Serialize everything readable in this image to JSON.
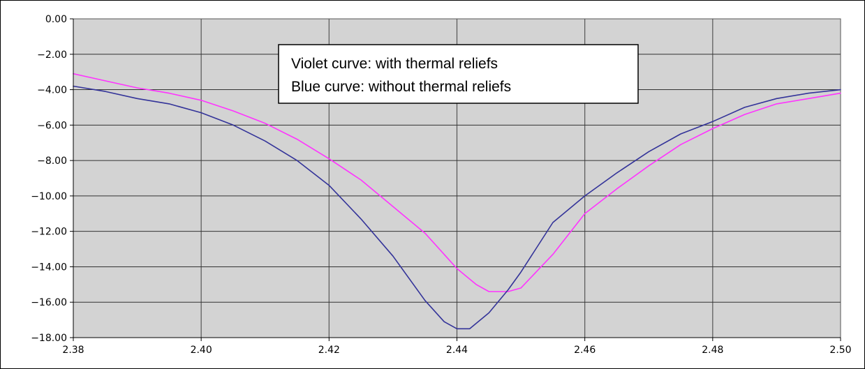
{
  "chart_data": {
    "type": "line",
    "title": "",
    "xlabel": "",
    "ylabel": "",
    "xlim": [
      2.38,
      2.5
    ],
    "ylim": [
      -18,
      0
    ],
    "x_ticks": [
      "2.38",
      "2.40",
      "2.42",
      "2.44",
      "2.46",
      "2.48",
      "2.50"
    ],
    "y_ticks": [
      "0.00",
      "−2.00",
      "−4.00",
      "−6.00",
      "−8.00",
      "−10.00",
      "−12.00",
      "−14.00",
      "−16.00",
      "−18.00"
    ],
    "grid": true,
    "annotation": {
      "lines": [
        "Violet curve: with thermal reliefs",
        "Blue curve: without thermal reliefs"
      ]
    },
    "series": [
      {
        "color": "#ff33ff",
        "x": [
          2.38,
          2.385,
          2.39,
          2.395,
          2.4,
          2.405,
          2.41,
          2.415,
          2.42,
          2.425,
          2.43,
          2.435,
          2.44,
          2.443,
          2.445,
          2.448,
          2.45,
          2.455,
          2.46,
          2.465,
          2.47,
          2.475,
          2.48,
          2.485,
          2.49,
          2.495,
          2.5
        ],
        "y": [
          -3.1,
          -3.5,
          -3.9,
          -4.2,
          -4.6,
          -5.2,
          -5.9,
          -6.8,
          -7.9,
          -9.1,
          -10.6,
          -12.1,
          -14.1,
          -15.0,
          -15.4,
          -15.4,
          -15.2,
          -13.3,
          -11.0,
          -9.6,
          -8.3,
          -7.1,
          -6.2,
          -5.4,
          -4.8,
          -4.5,
          -4.2
        ]
      },
      {
        "color": "#333399",
        "x": [
          2.38,
          2.385,
          2.39,
          2.395,
          2.4,
          2.405,
          2.41,
          2.415,
          2.42,
          2.425,
          2.43,
          2.435,
          2.438,
          2.44,
          2.442,
          2.445,
          2.448,
          2.45,
          2.455,
          2.46,
          2.465,
          2.47,
          2.475,
          2.48,
          2.485,
          2.49,
          2.495,
          2.5
        ],
        "y": [
          -3.8,
          -4.1,
          -4.5,
          -4.8,
          -5.3,
          -6.0,
          -6.9,
          -8.0,
          -9.4,
          -11.3,
          -13.4,
          -15.9,
          -17.1,
          -17.5,
          -17.5,
          -16.6,
          -15.3,
          -14.3,
          -11.5,
          -10.0,
          -8.7,
          -7.5,
          -6.5,
          -5.8,
          -5.0,
          -4.5,
          -4.2,
          -4.0
        ]
      }
    ]
  }
}
